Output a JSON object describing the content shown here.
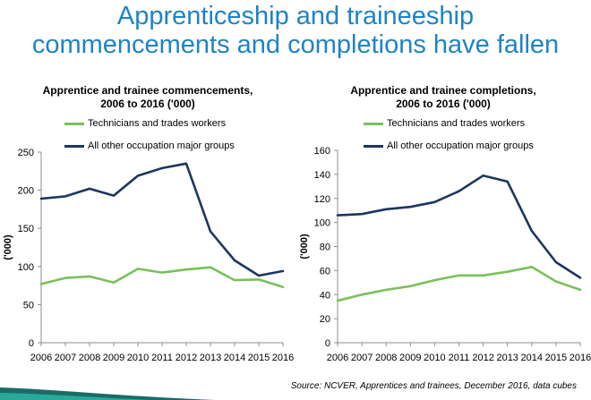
{
  "slide": {
    "title_line1": "Apprenticeship and traineeship",
    "title_line2": "commencements and completions have fallen",
    "source": "Source: NCVER, Apprentices and trainees, December 2016, data cubes"
  },
  "colors": {
    "title": "#1f83c5",
    "series_green": "#7ac05b",
    "series_navy": "#1c3660",
    "axis": "#8c8c8c"
  },
  "chart_data": [
    {
      "type": "line",
      "title_line1": "Apprentice and trainee commencements,",
      "title_line2": "2006 to 2016 ('000)",
      "ylabel": "('000)",
      "xlabel": "",
      "x": [
        "2006",
        "2007",
        "2008",
        "2009",
        "2010",
        "2011",
        "2012",
        "2013",
        "2014",
        "2015",
        "2016"
      ],
      "ylim": [
        0,
        250
      ],
      "yticks": [
        0,
        50,
        100,
        150,
        200,
        250
      ],
      "ytick_labels": [
        "0",
        "50",
        "100",
        "150",
        "200",
        "250"
      ],
      "grid": false,
      "legend": [
        "Technicians and trades workers",
        "All other occupation major groups"
      ],
      "series": [
        {
          "name": "Technicians and trades workers",
          "color": "#7ac05b",
          "values": [
            77,
            85,
            87,
            79,
            97,
            92,
            96,
            99,
            82,
            83,
            73
          ]
        },
        {
          "name": "All other occupation major groups",
          "color": "#1c3660",
          "values": [
            189,
            192,
            202,
            193,
            219,
            229,
            235,
            146,
            108,
            88,
            94
          ]
        }
      ]
    },
    {
      "type": "line",
      "title_line1": "Apprentice and trainee completions,",
      "title_line2": "2006 to 2016 ('000)",
      "ylabel": "('000)",
      "xlabel": "",
      "x": [
        "2006",
        "2007",
        "2008",
        "2009",
        "2010",
        "2011",
        "2012",
        "2013",
        "2014",
        "2015",
        "2016"
      ],
      "ylim": [
        0,
        160
      ],
      "yticks": [
        0,
        20,
        40,
        60,
        80,
        100,
        120,
        140,
        160
      ],
      "ytick_labels": [
        "0",
        "20",
        "40",
        "60",
        "80",
        "100",
        "120",
        "140",
        "160"
      ],
      "grid": false,
      "legend": [
        "Technicians and trades workers",
        "All other occupation major groups"
      ],
      "series": [
        {
          "name": "Technicians and trades workers",
          "color": "#7ac05b",
          "values": [
            35,
            40,
            44,
            47,
            52,
            56,
            56,
            59,
            63,
            51,
            44
          ]
        },
        {
          "name": "All other occupation major groups",
          "color": "#1c3660",
          "values": [
            106,
            107,
            111,
            113,
            117,
            126,
            139,
            134,
            93,
            67,
            54
          ]
        }
      ]
    }
  ]
}
